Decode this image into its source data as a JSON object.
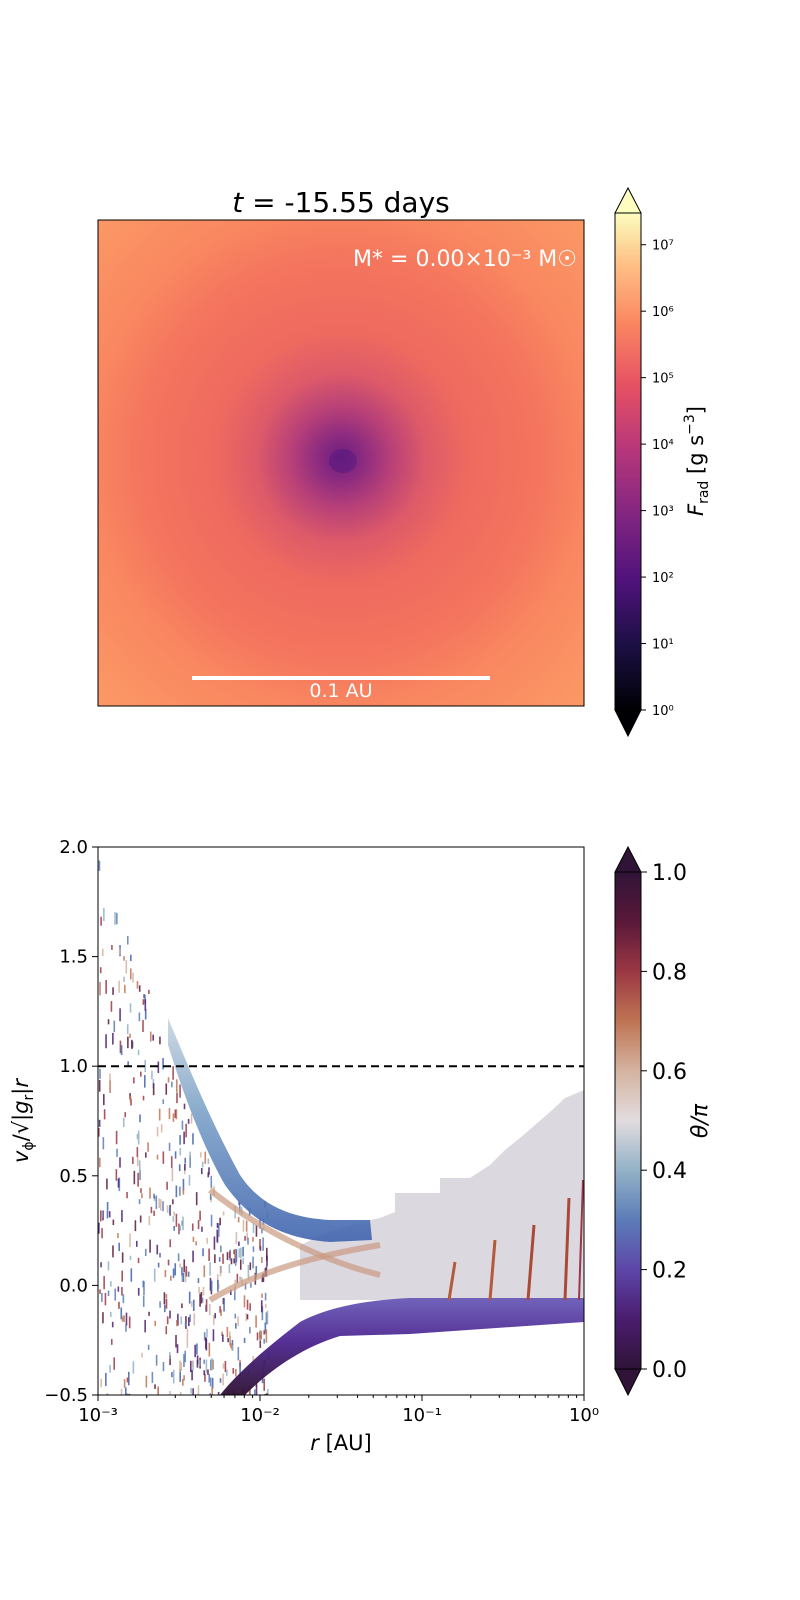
{
  "chart_data": [
    {
      "type": "heatmap",
      "title": "t = -15.55 days",
      "title_italic_part": "t",
      "title_rest": " = -15.55 days",
      "annotation": "M* = 0.00×10⁻³ M☉",
      "scale_bar_label": "0.1 AU",
      "colormap": "magma",
      "image_description_colors": [
        "#fc8d61",
        "#f07060",
        "#d2506a",
        "#9b2f7d",
        "#6b1f80"
      ],
      "colorbar": {
        "label": "F_rad [g s⁻³]",
        "label_main": "F",
        "label_sub": "rad",
        "label_units": " [g s",
        "label_exp": "−3",
        "label_close": "]",
        "scale": "log",
        "ticks": [
          "10⁰",
          "10¹",
          "10²",
          "10³",
          "10⁴",
          "10⁵",
          "10⁶",
          "10⁷"
        ],
        "range": [
          1,
          30000000
        ],
        "extend": "both"
      }
    },
    {
      "type": "heatmap",
      "xlabel": "r [AU]",
      "ylabel": "v_φ/√|g_r|r",
      "xscale": "log",
      "xlim": [
        0.001,
        1
      ],
      "ylim": [
        -0.5,
        2.0
      ],
      "xticks": [
        "10⁻³",
        "10⁻²",
        "10⁻¹",
        "10⁰"
      ],
      "yticks": [
        "2.0",
        "1.5",
        "1.0",
        "0.5",
        "0.0",
        "−0.5"
      ],
      "reference_line": {
        "y": 1.0,
        "style": "dashed"
      },
      "upper_branch": {
        "r": [
          0.003,
          0.004,
          0.006,
          0.01,
          0.02,
          0.04,
          0.06,
          0.1,
          0.3,
          1.0
        ],
        "v": [
          1.0,
          0.8,
          0.6,
          0.45,
          0.3,
          0.27,
          0.35,
          0.4,
          0.6,
          0.85
        ]
      },
      "lower_branch": {
        "r": [
          0.004,
          0.006,
          0.01,
          0.02,
          0.04,
          0.06,
          0.1,
          1.0
        ],
        "v": [
          -0.5,
          -0.35,
          -0.25,
          -0.18,
          -0.18,
          -0.17,
          -0.17,
          -0.17
        ]
      },
      "colorbar": {
        "label": "θ/π",
        "colormap": "twilight_shifted",
        "ticks": [
          "0.0",
          "0.2",
          "0.4",
          "0.6",
          "0.8",
          "1.0"
        ],
        "range": [
          0,
          1
        ],
        "extend": "both"
      }
    }
  ]
}
